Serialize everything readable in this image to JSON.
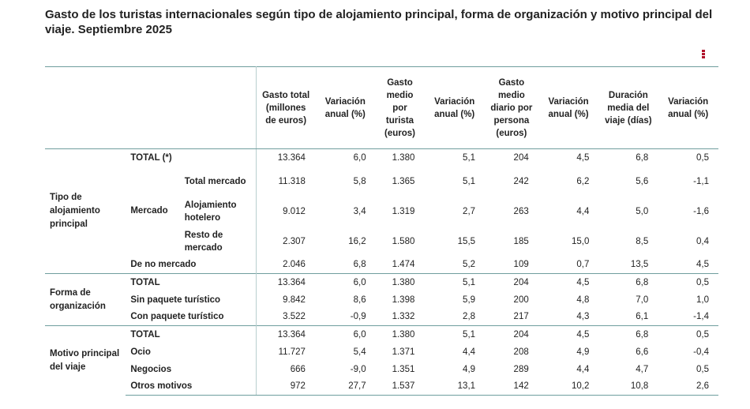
{
  "title": "Gasto de los turistas internacionales según tipo de alojamiento principal, forma de organización y motivo principal del viaje. Septiembre 2025",
  "menu_icon": "vertical-ellipsis-icon",
  "accent_color": "#b0122a",
  "headers": [
    "Gasto total (millones de euros)",
    "Variación anual (%)",
    "Gasto medio por turista (euros)",
    "Variación anual (%)",
    "Gasto medio diario por persona (euros)",
    "Variación anual (%)",
    "Duración media del viaje (días)",
    "Variación anual (%)"
  ],
  "groups": {
    "alojamiento": "Tipo de alojamiento principal",
    "mercado": "Mercado",
    "organizacion": "Forma de organización",
    "motivo": "Motivo principal del viaje"
  },
  "rows": [
    {
      "label": "TOTAL (*)",
      "values": [
        "13.364",
        "6,0",
        "1.380",
        "5,1",
        "204",
        "4,5",
        "6,8",
        "0,5"
      ]
    },
    {
      "label": "Total mercado",
      "values": [
        "11.318",
        "5,8",
        "1.365",
        "5,1",
        "242",
        "6,2",
        "5,6",
        "-1,1"
      ]
    },
    {
      "label": "Alojamiento hotelero",
      "values": [
        "9.012",
        "3,4",
        "1.319",
        "2,7",
        "263",
        "4,4",
        "5,0",
        "-1,6"
      ]
    },
    {
      "label": "Resto de mercado",
      "values": [
        "2.307",
        "16,2",
        "1.580",
        "15,5",
        "185",
        "15,0",
        "8,5",
        "0,4"
      ]
    },
    {
      "label": "De no mercado",
      "values": [
        "2.046",
        "6,8",
        "1.474",
        "5,2",
        "109",
        "0,7",
        "13,5",
        "4,5"
      ]
    },
    {
      "label": "TOTAL",
      "values": [
        "13.364",
        "6,0",
        "1.380",
        "5,1",
        "204",
        "4,5",
        "6,8",
        "0,5"
      ]
    },
    {
      "label": "Sin paquete turístico",
      "values": [
        "9.842",
        "8,6",
        "1.398",
        "5,9",
        "200",
        "4,8",
        "7,0",
        "1,0"
      ]
    },
    {
      "label": "Con paquete turístico",
      "values": [
        "3.522",
        "-0,9",
        "1.332",
        "2,8",
        "217",
        "4,3",
        "6,1",
        "-1,4"
      ]
    },
    {
      "label": "TOTAL",
      "values": [
        "13.364",
        "6,0",
        "1.380",
        "5,1",
        "204",
        "4,5",
        "6,8",
        "0,5"
      ]
    },
    {
      "label": "Ocio",
      "values": [
        "11.727",
        "5,4",
        "1.371",
        "4,4",
        "208",
        "4,9",
        "6,6",
        "-0,4"
      ]
    },
    {
      "label": "Negocios",
      "values": [
        "666",
        "-9,0",
        "1.351",
        "4,9",
        "289",
        "4,4",
        "4,7",
        "0,5"
      ]
    },
    {
      "label": "Otros motivos",
      "values": [
        "972",
        "27,7",
        "1.537",
        "13,1",
        "142",
        "10,2",
        "10,8",
        "2,6"
      ]
    }
  ]
}
